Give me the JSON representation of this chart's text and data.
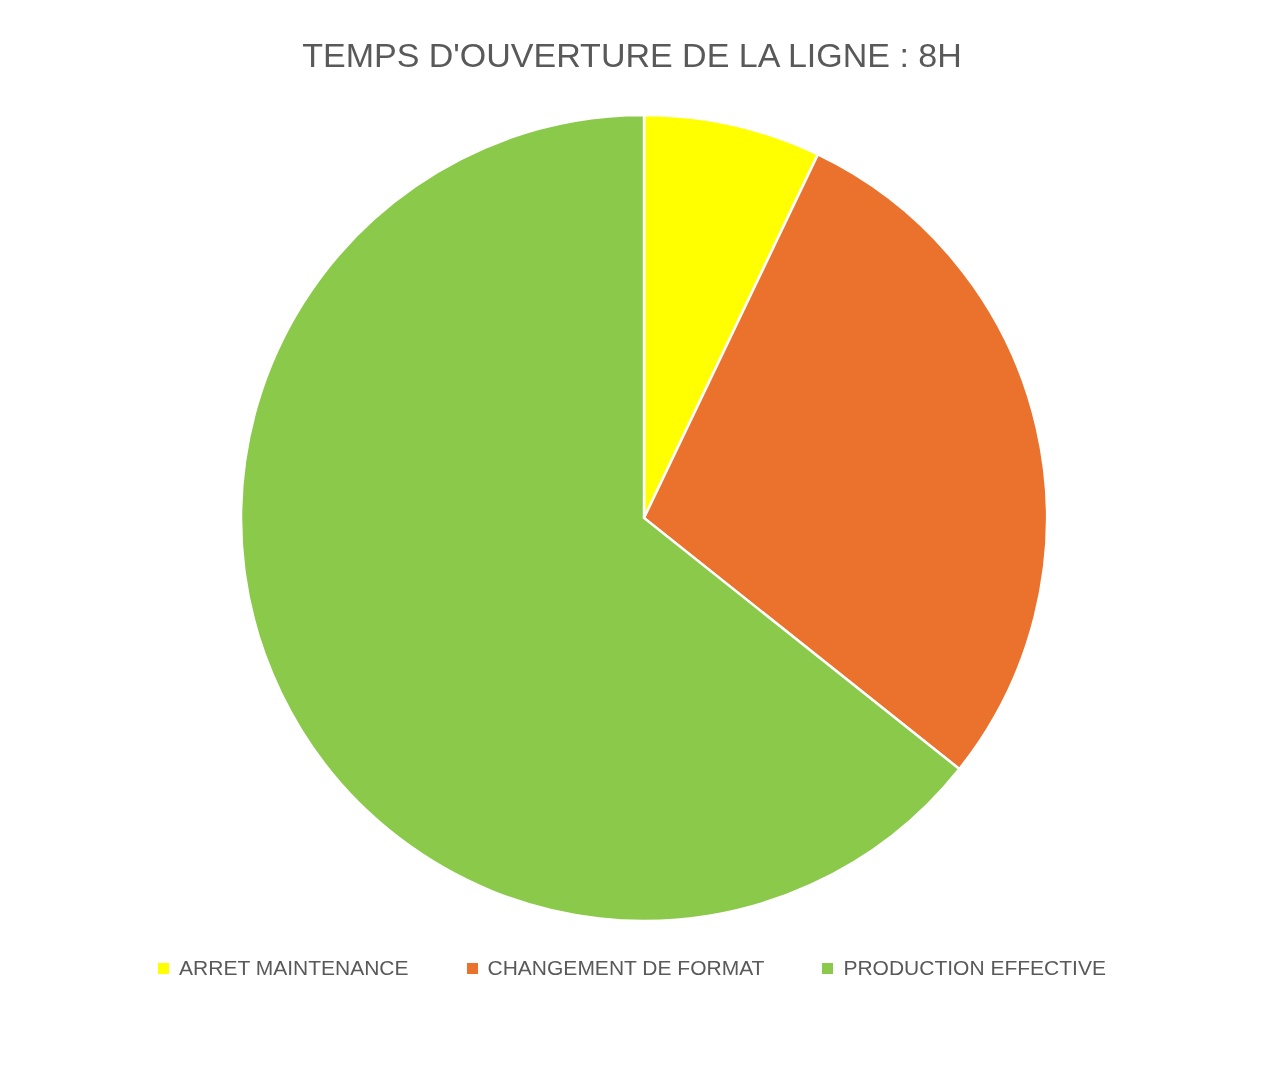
{
  "chart_data": {
    "type": "pie",
    "title": "TEMPS D'OUVERTURE DE LA LIGNE : 8H",
    "categories": [
      "ARRET MAINTENANCE",
      "CHANGEMENT DE FORMAT",
      "PRODUCTION EFFECTIVE"
    ],
    "values": [
      7.1,
      28.6,
      64.3
    ],
    "colors": [
      "#ffff00",
      "#eb722d",
      "#8bc94a"
    ],
    "legend": "bottom"
  }
}
